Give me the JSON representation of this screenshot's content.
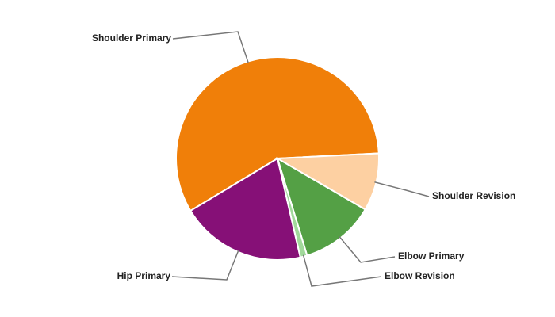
{
  "chart_data": {
    "type": "pie",
    "categories": [
      "Shoulder Primary",
      "Shoulder Revision",
      "Elbow Primary",
      "Elbow Revision",
      "Hip Primary"
    ],
    "values": [
      57.8,
      9.2,
      11.9,
      1.1,
      20.0
    ],
    "colors": [
      "#f07f09",
      "#fdd0a2",
      "#54a045",
      "#a1d99b",
      "#861077"
    ]
  }
}
